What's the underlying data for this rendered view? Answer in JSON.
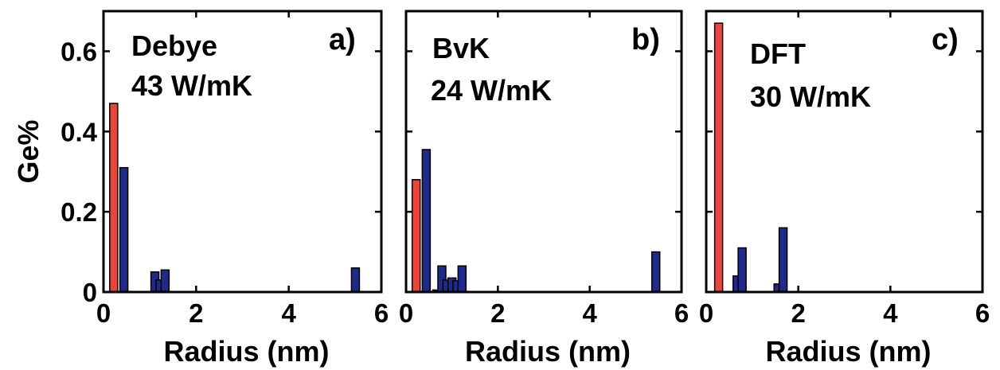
{
  "chart_data": [
    {
      "type": "bar",
      "panel_label": "a)",
      "method": "Debye",
      "conductivity": "43 W/mK",
      "xlabel": "Radius (nm)",
      "ylabel": "Ge%",
      "xlim": [
        0,
        6
      ],
      "ylim": [
        0,
        0.7
      ],
      "xticks": [
        "0",
        "2",
        "4",
        "6"
      ],
      "yticks": [
        "0",
        "0.2",
        "0.4",
        "0.6"
      ],
      "bars": [
        {
          "x": 0.22,
          "y": 0.47,
          "color": "#e8453c"
        },
        {
          "x": 0.44,
          "y": 0.31,
          "color": "#1f2a8a"
        },
        {
          "x": 1.11,
          "y": 0.05,
          "color": "#1f2a8a"
        },
        {
          "x": 1.22,
          "y": 0.03,
          "color": "#1f2a8a"
        },
        {
          "x": 1.33,
          "y": 0.055,
          "color": "#1f2a8a"
        },
        {
          "x": 5.44,
          "y": 0.06,
          "color": "#1f2a8a"
        }
      ]
    },
    {
      "type": "bar",
      "panel_label": "b)",
      "method": "BvK",
      "conductivity": "24 W/mK",
      "xlabel": "Radius (nm)",
      "ylabel": "",
      "xlim": [
        0,
        6
      ],
      "ylim": [
        0,
        0.7
      ],
      "xticks": [
        "0",
        "2",
        "4",
        "6"
      ],
      "yticks": [],
      "bars": [
        {
          "x": 0.22,
          "y": 0.28,
          "color": "#e8453c"
        },
        {
          "x": 0.44,
          "y": 0.355,
          "color": "#1f2a8a"
        },
        {
          "x": 0.67,
          "y": 0.005,
          "color": "#1f2a8a"
        },
        {
          "x": 0.78,
          "y": 0.065,
          "color": "#1f2a8a"
        },
        {
          "x": 0.89,
          "y": 0.03,
          "color": "#1f2a8a"
        },
        {
          "x": 1.0,
          "y": 0.035,
          "color": "#1f2a8a"
        },
        {
          "x": 1.11,
          "y": 0.028,
          "color": "#1f2a8a"
        },
        {
          "x": 1.22,
          "y": 0.065,
          "color": "#1f2a8a"
        },
        {
          "x": 5.44,
          "y": 0.1,
          "color": "#1f2a8a"
        }
      ]
    },
    {
      "type": "bar",
      "panel_label": "c)",
      "method": "DFT",
      "conductivity": "30 W/mK",
      "xlabel": "Radius (nm)",
      "ylabel": "",
      "xlim": [
        0,
        6
      ],
      "ylim": [
        0,
        0.7
      ],
      "xticks": [
        "0",
        "2",
        "4",
        "6"
      ],
      "yticks": [],
      "bars": [
        {
          "x": 0.27,
          "y": 0.67,
          "color": "#e8453c"
        },
        {
          "x": 0.67,
          "y": 0.04,
          "color": "#1f2a8a"
        },
        {
          "x": 0.78,
          "y": 0.11,
          "color": "#1f2a8a"
        },
        {
          "x": 1.56,
          "y": 0.02,
          "color": "#1f2a8a"
        },
        {
          "x": 1.67,
          "y": 0.16,
          "color": "#1f2a8a"
        }
      ]
    }
  ]
}
